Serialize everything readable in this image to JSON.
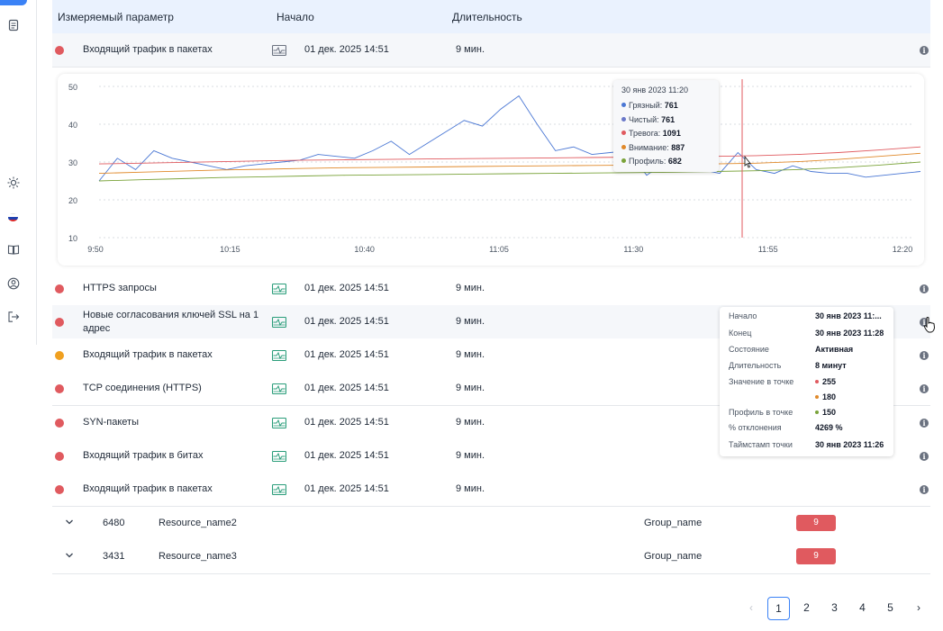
{
  "sidebar": {
    "icons": [
      "document-icon",
      "sun-icon",
      "flag-icon",
      "book-icon",
      "user-icon",
      "logout-icon"
    ]
  },
  "header": {
    "param": "Измеряемый параметр",
    "start": "Начало",
    "duration": "Длительность"
  },
  "rows": [
    {
      "name": "Входящий трафик в пакетах",
      "start": "01 дек. 2025 14:51",
      "duration": "9 мин.",
      "status": "#e05a5f"
    },
    {
      "name": "HTTPS запросы",
      "start": "01 дек. 2025 14:51",
      "duration": "9 мин.",
      "status": "#e05a5f"
    },
    {
      "name": "Новые согласования ключей SSL на 1 адрес",
      "start": "01 дек. 2025 14:51",
      "duration": "9 мин.",
      "status": "#e05a5f"
    },
    {
      "name": "Входящий трафик в пакетах",
      "start": "01 дек. 2025 14:51",
      "duration": "9 мин.",
      "status": "#f0a020"
    },
    {
      "name": "TCP соединения (HTTPS)",
      "start": "01 дек. 2025 14:51",
      "duration": "9 мин.",
      "status": "#e05a5f"
    },
    {
      "name": "SYN-пакеты",
      "start": "01 дек. 2025 14:51",
      "duration": "9 мин.",
      "status": "#e05a5f"
    },
    {
      "name": "Входящий трафик в битах",
      "start": "01 дек. 2025 14:51",
      "duration": "9 мин.",
      "status": "#e05a5f"
    },
    {
      "name": "Входящий трафик в пакетах",
      "start": "01 дек. 2025 14:51",
      "duration": "9 мин.",
      "status": "#e05a5f"
    }
  ],
  "groups": [
    {
      "id": "6480",
      "resource": "Resource_name2",
      "group": "Group_name",
      "count": "9"
    },
    {
      "id": "3431",
      "resource": "Resource_name3",
      "group": "Group_name",
      "count": "9"
    }
  ],
  "chart_data": {
    "type": "line",
    "x_ticks": [
      "9:50",
      "10:15",
      "10:40",
      "11:05",
      "11:30",
      "11:55",
      "12:20"
    ],
    "y_ticks": [
      "50",
      "40",
      "30",
      "20",
      "10"
    ],
    "ylim": [
      10,
      50
    ],
    "grid": true,
    "series": [
      {
        "name": "Грязный",
        "color": "#4a77d4",
        "values": [
          25,
          31,
          28,
          33,
          31,
          30,
          29,
          28,
          29,
          29.5,
          30,
          30.5,
          32,
          31.5,
          31,
          33,
          35.5,
          32,
          35,
          38,
          41,
          39.5,
          44,
          47.5,
          40,
          33,
          34,
          32,
          32.5,
          33,
          26.5,
          30,
          32,
          28,
          27,
          32.5,
          28,
          27,
          29,
          27.5,
          27,
          27,
          26,
          26.5,
          27,
          27.5
        ]
      },
      {
        "name": "Тревога",
        "color": "#e05a5f",
        "values": [
          29.5,
          29.7,
          29.9,
          30.1,
          30.3,
          30.5,
          30.6,
          30.7,
          30.8,
          30.9,
          31.0,
          31.1,
          31.2,
          31.3,
          31.4,
          31.5,
          31.7,
          32.0,
          32.5,
          33.2,
          34.0
        ]
      },
      {
        "name": "Внимание",
        "color": "#e0892a",
        "values": [
          27,
          27.3,
          27.6,
          27.9,
          28.1,
          28.3,
          28.5,
          28.6,
          28.7,
          28.8,
          28.9,
          29.0,
          29.1,
          29.2,
          29.3,
          29.5,
          29.7,
          30.1,
          30.7,
          31.5,
          32.3
        ]
      },
      {
        "name": "Профиль",
        "color": "#7aa33a",
        "values": [
          25,
          25.3,
          25.6,
          25.9,
          26.1,
          26.3,
          26.5,
          26.6,
          26.7,
          26.8,
          26.9,
          27.0,
          27.1,
          27.2,
          27.3,
          27.5,
          27.7,
          28.0,
          28.5,
          29.2,
          30.0
        ]
      }
    ],
    "tooltip": {
      "title": "30 янв 2023 11:20",
      "items": [
        {
          "label": "Грязный:",
          "value": "761",
          "color": "#4a77d4"
        },
        {
          "label": "Чистый:",
          "value": "761",
          "color": "#6a78c9"
        },
        {
          "label": "Тревога:",
          "value": "1091",
          "color": "#e05a5f"
        },
        {
          "label": "Внимание:",
          "value": "887",
          "color": "#e0892a"
        },
        {
          "label": "Профиль:",
          "value": "682",
          "color": "#7aa33a"
        }
      ]
    }
  },
  "detail_tooltip": {
    "rows": [
      {
        "key": "Начало",
        "value": "30 янв 2023 11:..."
      },
      {
        "key": "Конец",
        "value": "30 янв 2023 11:28"
      },
      {
        "key": "Состояние",
        "value": "Активная"
      },
      {
        "key": "Длительность",
        "value": "8 минут"
      },
      {
        "key": "Значение в точке",
        "value": "255",
        "color": "#e05a5f"
      },
      {
        "key": "",
        "value": "180",
        "color": "#e0892a"
      },
      {
        "key": "Профиль в точке",
        "value": "150",
        "color": "#7aa33a"
      },
      {
        "key": "% отклонения",
        "value": "4269 %"
      },
      {
        "key": "Таймстамп точки",
        "value": "30 янв 2023 11:26"
      }
    ]
  },
  "pagination": {
    "pages": [
      "1",
      "2",
      "3",
      "4",
      "5"
    ],
    "current": "1"
  }
}
